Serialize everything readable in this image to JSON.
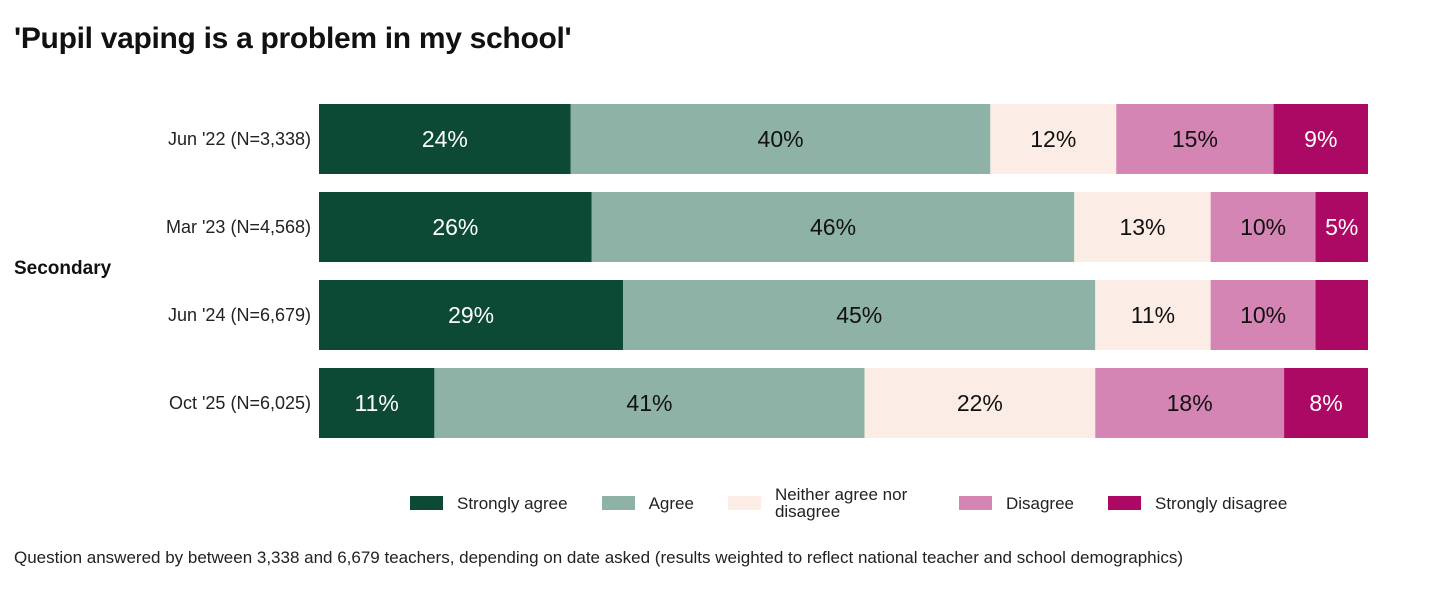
{
  "chart_data": {
    "type": "bar",
    "orientation": "horizontal",
    "stacked": true,
    "normalized_percent": true,
    "title": "'Pupil vaping is a problem in my school'",
    "group_label": "Secondary",
    "categories": [
      "Jun '22 (N=3,338)",
      "Mar '23 (N=4,568)",
      "Jun '24 (N=6,679)",
      "Oct '25 (N=6,025)"
    ],
    "series": [
      {
        "name": "Strongly agree",
        "color": "#0d4a36",
        "text_color": "#ffffff",
        "values": [
          24,
          26,
          29,
          11
        ],
        "labels": [
          "24%",
          "26%",
          "29%",
          "11%"
        ]
      },
      {
        "name": "Agree",
        "color": "#8fb2a6",
        "text_color": "#111111",
        "values": [
          40,
          46,
          45,
          41
        ],
        "labels": [
          "40%",
          "46%",
          "45%",
          "41%"
        ]
      },
      {
        "name": "Neither agree nor disagree",
        "color": "#fbece6",
        "text_color": "#111111",
        "values": [
          12,
          13,
          11,
          22
        ],
        "labels": [
          "12%",
          "13%",
          "11%",
          "22%"
        ]
      },
      {
        "name": "Disagree",
        "color": "#d585b4",
        "text_color": "#111111",
        "values": [
          15,
          10,
          10,
          18
        ],
        "labels": [
          "15%",
          "10%",
          "10%",
          "18%"
        ]
      },
      {
        "name": "Strongly disagree",
        "color": "#ab0963",
        "text_color": "#ffffff",
        "values": [
          9,
          5,
          5,
          8
        ],
        "labels": [
          "9%",
          "5%",
          "",
          "8%"
        ]
      }
    ],
    "legend_position": "bottom",
    "footnote": "Question answered by between 3,338 and 6,679 teachers, depending on date asked (results weighted to reflect national teacher and school demographics)"
  }
}
